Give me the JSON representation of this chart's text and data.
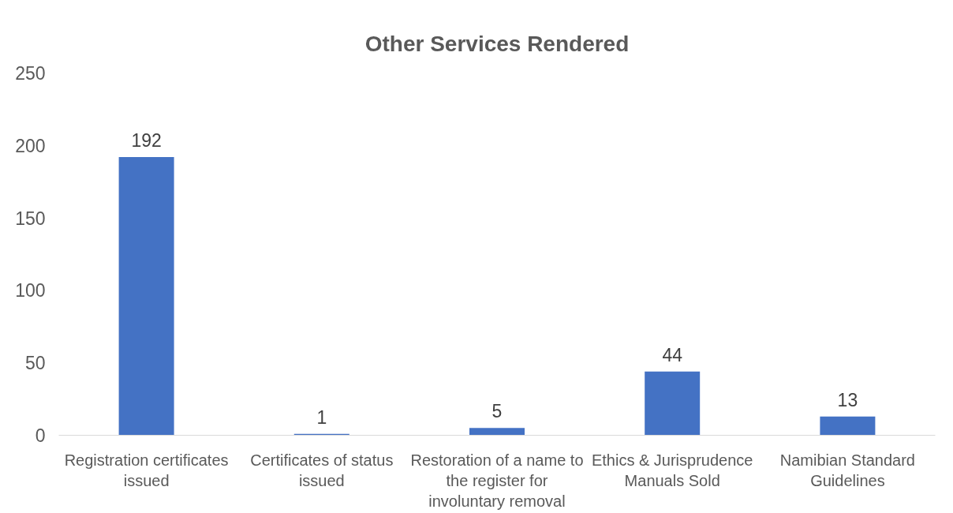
{
  "chart_data": {
    "type": "bar",
    "title": "Other Services Rendered",
    "categories": [
      "Registration certificates issued",
      "Certificates of status issued",
      "Restoration of a name to the register for involuntary removal",
      "Ethics & Jurisprudence Manuals Sold",
      "Namibian Standard Guidelines"
    ],
    "values": [
      192,
      1,
      5,
      44,
      13
    ],
    "color": "#4472c4",
    "ylim": [
      0,
      250
    ],
    "yticks": [
      0,
      50,
      100,
      150,
      200,
      250
    ],
    "grid": false,
    "data_labels": true
  }
}
